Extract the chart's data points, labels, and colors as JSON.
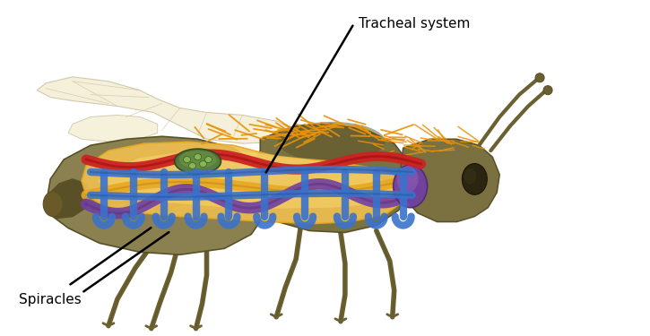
{
  "label_tracheal": "Tracheal system",
  "label_spiracles": "Spiracles",
  "bg_color": "#ffffff",
  "bee_body_color": "#8B8050",
  "bee_dark": "#5A5028",
  "bee_medium": "#7A7040",
  "abdomen_yellow": "#E8B830",
  "internal_yellow": "#F0C050",
  "internal_yellow2": "#E8A820",
  "trachea_blue": "#3A72CC",
  "trachea_red": "#CC2222",
  "trachea_purple": "#7040A0",
  "trachea_green": "#507840",
  "hair_color": "#E8920A",
  "wing_color": "#F2EDD0",
  "wing_edge": "#C8BEA0",
  "leg_color": "#6A6030"
}
